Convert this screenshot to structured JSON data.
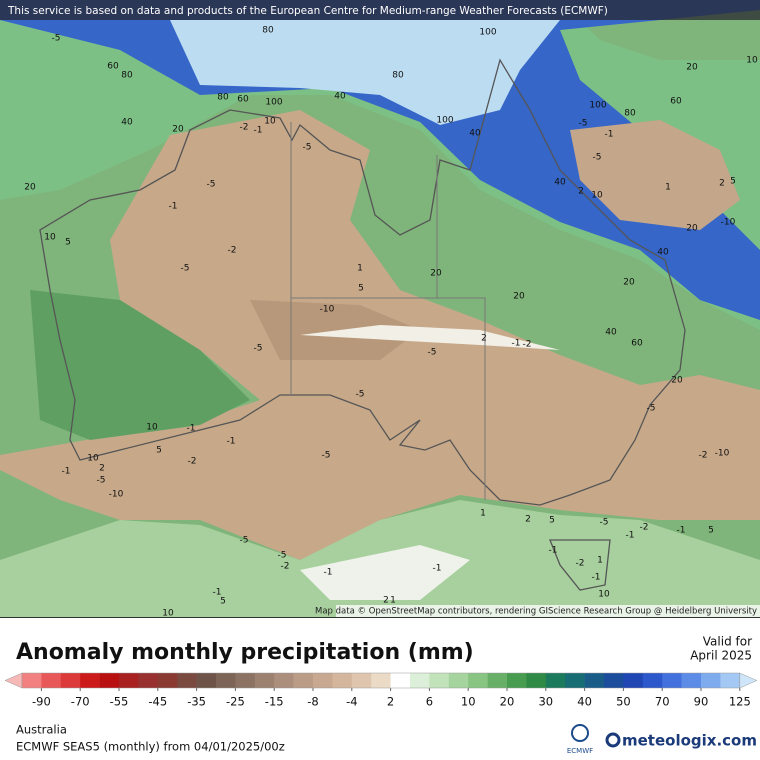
{
  "header": {
    "notice": "This service is based on data and products of the European Centre for Medium-range Weather Forecasts (ECMWF)"
  },
  "map": {
    "attribution": "Map data © OpenStreetMap contributors, rendering GIScience Research Group @ Heidelberg University",
    "contour_labels": [
      -5,
      80,
      100,
      60,
      80,
      20,
      10,
      40,
      80,
      60,
      100,
      40,
      80,
      20,
      -2,
      -1,
      10,
      -5,
      100,
      40,
      100,
      80,
      60,
      -5,
      -1,
      -5,
      20,
      -5,
      -1,
      40,
      2,
      10,
      1,
      2,
      5,
      -10,
      20,
      10,
      5,
      -2,
      -5,
      1,
      20,
      5,
      40,
      20,
      20,
      -10,
      40,
      60,
      2,
      -1,
      -2,
      -5,
      -5,
      20,
      -5,
      -5,
      10,
      -1,
      -1,
      10,
      5,
      2,
      -1,
      -5,
      -2,
      -5,
      -2,
      -10,
      -10,
      1,
      2,
      5,
      -5,
      -2,
      -1,
      -1,
      5,
      -5,
      -5,
      -2,
      -1,
      1,
      -2,
      -1,
      -1,
      -1,
      -1,
      5,
      2,
      1,
      10,
      10
    ]
  },
  "legend": {
    "title": "Anomaly monthly precipitation (mm)",
    "valid_label": "Valid for",
    "valid_date": "April 2025",
    "ticks": [
      -90,
      -70,
      -55,
      -45,
      -35,
      -25,
      -15,
      -8,
      -4,
      2,
      6,
      10,
      20,
      30,
      40,
      50,
      70,
      90,
      125
    ],
    "under_color": "#f7b8b8",
    "over_color": "#cfe6fa",
    "colors": [
      "#f28080",
      "#e85858",
      "#dc3a3a",
      "#cc1a1a",
      "#b81010",
      "#a82020",
      "#983030",
      "#8a3a30",
      "#7a4a40",
      "#6e5448",
      "#7c6456",
      "#8c7262",
      "#9c8070",
      "#ac8e7c",
      "#bb9c86",
      "#c8a890",
      "#d4b69c",
      "#dfc5ad",
      "#eadac6",
      "#ffffff",
      "#dcefd8",
      "#c2e2ba",
      "#a6d49e",
      "#88c482",
      "#68b068",
      "#489c50",
      "#2e8a44",
      "#1c7a5c",
      "#186c74",
      "#1a5c88",
      "#1c4c9c",
      "#2046b4",
      "#2c58cc",
      "#4270dc",
      "#5c8ce6",
      "#7eaaee",
      "#a4c8f4"
    ]
  },
  "footer": {
    "region": "Australia",
    "model": "ECMWF SEAS5 (monthly) from 04/01/2025/00z",
    "logo": "ECMWF",
    "brand": "meteologix.com"
  }
}
